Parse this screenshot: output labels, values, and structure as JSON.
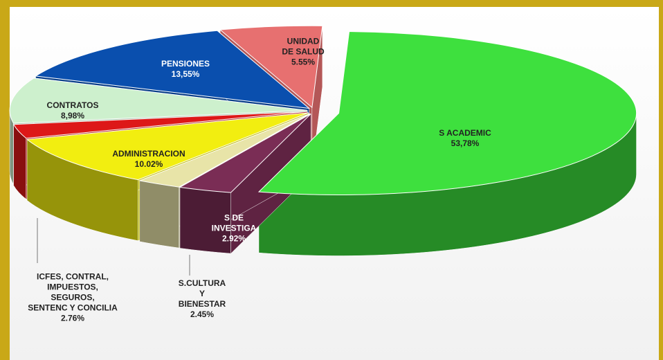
{
  "chart_data": {
    "type": "pie",
    "categories": [
      "S ACADEMIC",
      "S DE\nINVESTIGA",
      "S.CULTURA\nY\nBIENESTAR",
      "ADMINISTRACION",
      "ICFES, CONTRAL,\nIMPUESTOS,\nSEGUROS,\nSENTENC Y CONCILIA",
      "CONTRATOS",
      "PENSIONES",
      "UNIDAD\nDE SALUD"
    ],
    "values": [
      53.78,
      2.92,
      2.45,
      10.02,
      2.76,
      8.98,
      13.55,
      5.55
    ],
    "value_labels": [
      "53,78%",
      "2.92%",
      "2.45%",
      "10.02%",
      "2.76%",
      "8,98%",
      "13,55%",
      "5.55%"
    ],
    "colors": [
      "#3ee03e",
      "#7a2d55",
      "#e8e4a8",
      "#f2ee10",
      "#dd1818",
      "#cdf0cd",
      "#0a4fae",
      "#e77070"
    ]
  }
}
